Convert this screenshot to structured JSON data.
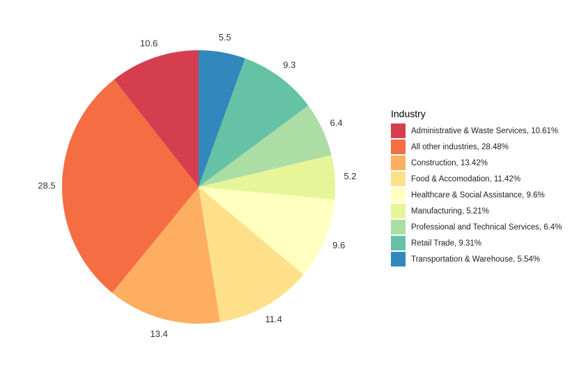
{
  "chart_data": {
    "type": "pie",
    "legend": {
      "title": "Industry",
      "position": "right",
      "entries": [
        "Administrative & Waste Services, 10.61%",
        "All other industries, 28.48%",
        "Construction, 13.42%",
        "Food & Accomodation, 11.42%",
        "Healthcare & Social Assistance, 9.6%",
        "Manufacturing, 5.21%",
        "Professional and Technical Services, 6.4%",
        "Retail Trade, 9.31%",
        "Transportation & Warehouse, 5.54%"
      ]
    },
    "slices": [
      {
        "value": 5.54,
        "label": "5.5",
        "color": "#3288BD"
      },
      {
        "value": 9.31,
        "label": "9.3",
        "color": "#66C2A5"
      },
      {
        "value": 6.4,
        "label": "6.4",
        "color": "#ABDDA4"
      },
      {
        "value": 5.21,
        "label": "5.2",
        "color": "#E6F598"
      },
      {
        "value": 9.6,
        "label": "9.6",
        "color": "#FFFFBF"
      },
      {
        "value": 11.42,
        "label": "11.4",
        "color": "#FEE08B"
      },
      {
        "value": 13.42,
        "label": "13.4",
        "color": "#FDAE61"
      },
      {
        "value": 28.48,
        "label": "28.5",
        "color": "#F46D43"
      },
      {
        "value": 10.61,
        "label": "10.6",
        "color": "#D53E4F"
      }
    ],
    "legend_colors": [
      "#D53E4F",
      "#F46D43",
      "#FDAE61",
      "#FEE08B",
      "#FFFFBF",
      "#E6F598",
      "#ABDDA4",
      "#66C2A5",
      "#3288BD"
    ],
    "direction": "clockwise",
    "start": "top"
  }
}
